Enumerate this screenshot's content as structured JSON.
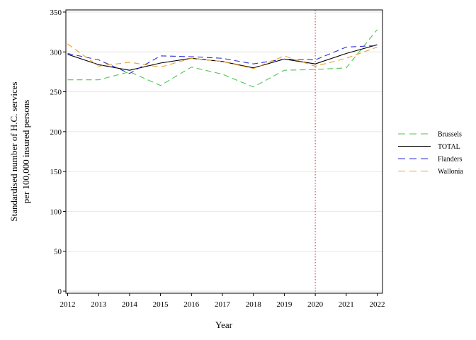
{
  "chart_data": {
    "type": "line",
    "title": "",
    "xlabel": "Year",
    "ylabel_line1": "Standardised number of H.C. services",
    "ylabel_line2": "per 100,000 insured persons",
    "x": [
      2012,
      2013,
      2014,
      2015,
      2016,
      2017,
      2018,
      2019,
      2020,
      2021,
      2022
    ],
    "xlim": [
      2012,
      2022
    ],
    "ylim": [
      0,
      350
    ],
    "yticks": [
      0,
      50,
      100,
      150,
      200,
      250,
      300,
      350
    ],
    "grid": true,
    "legend_position": "right",
    "reference_line": {
      "x": 2020,
      "color": "#d62728",
      "style": "dotted"
    },
    "series": [
      {
        "name": "Brussels",
        "color": "#4fc44f",
        "dash": "dashed",
        "values": [
          265,
          265,
          275,
          258,
          281,
          272,
          256,
          277,
          278,
          280,
          328
        ]
      },
      {
        "name": "TOTAL",
        "color": "#000000",
        "dash": "solid",
        "values": [
          297,
          284,
          277,
          286,
          292,
          288,
          280,
          291,
          285,
          298,
          309
        ]
      },
      {
        "name": "Flanders",
        "color": "#2f2fd6",
        "dash": "dashed",
        "values": [
          298,
          290,
          273,
          295,
          294,
          292,
          285,
          291,
          290,
          306,
          308
        ]
      },
      {
        "name": "Wallonia",
        "color": "#e8a030",
        "dash": "dashed",
        "values": [
          310,
          282,
          287,
          281,
          292,
          288,
          279,
          295,
          282,
          292,
          306
        ]
      }
    ]
  }
}
